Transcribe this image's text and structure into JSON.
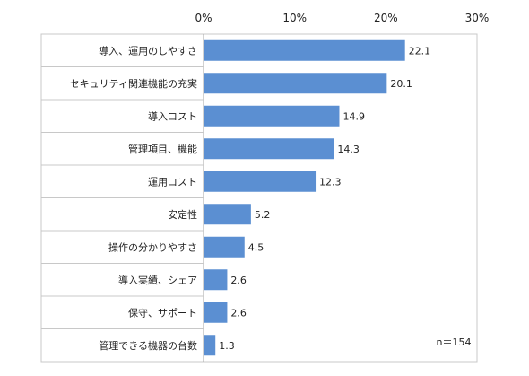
{
  "chart_data": {
    "type": "bar",
    "orientation": "horizontal",
    "categories": [
      "導入、運用のしやすさ",
      "セキュリティ関連機能の充実",
      "導入コスト",
      "管理項目、機能",
      "運用コスト",
      "安定性",
      "操作の分かりやすさ",
      "導入実績、シェア",
      "保守、サポート",
      "管理できる機器の台数"
    ],
    "values": [
      22.1,
      20.1,
      14.9,
      14.3,
      12.3,
      5.2,
      4.5,
      2.6,
      2.6,
      1.3
    ],
    "value_labels": [
      "22.1",
      "20.1",
      "14.9",
      "14.3",
      "12.3",
      "5.2",
      "4.5",
      "2.6",
      "2.6",
      "1.3"
    ],
    "x_ticks": [
      "0%",
      "10%",
      "20%",
      "30%"
    ],
    "xlim": [
      0,
      30
    ],
    "grid": false,
    "axis_position": "top",
    "note": "n＝154",
    "colors": {
      "bar": "#5b8fd2",
      "axis": "#a6a6a6",
      "grid": "#c8c8c8",
      "text": "#222222"
    }
  }
}
